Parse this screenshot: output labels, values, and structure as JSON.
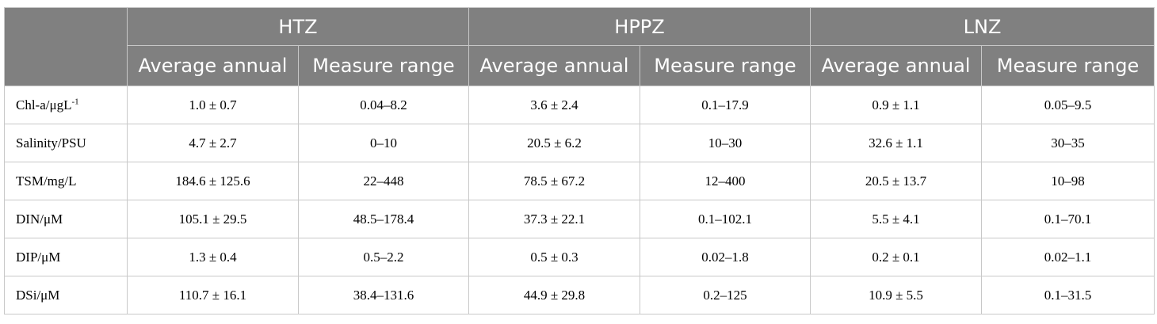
{
  "table": {
    "groups": [
      "HTZ",
      "HPPZ",
      "LNZ"
    ],
    "subheaders": [
      "Average annual",
      "Measure range",
      "Average annual",
      "Measure range",
      "Average annual",
      "Measure range"
    ],
    "rows": [
      {
        "label": "Chl-a/μgL",
        "label_sup": "-1",
        "cells": [
          "1.0 ± 0.7",
          "0.04–8.2",
          "3.6 ± 2.4",
          "0.1–17.9",
          "0.9 ± 1.1",
          "0.05–9.5"
        ]
      },
      {
        "label": "Salinity/PSU",
        "label_sup": "",
        "cells": [
          "4.7 ± 2.7",
          "0–10",
          "20.5 ± 6.2",
          "10–30",
          "32.6 ± 1.1",
          "30–35"
        ]
      },
      {
        "label": "TSM/mg/L",
        "label_sup": "",
        "cells": [
          "184.6 ± 125.6",
          "22–448",
          "78.5 ± 67.2",
          "12–400",
          "20.5 ± 13.7",
          "10–98"
        ]
      },
      {
        "label": "DIN/μM",
        "label_sup": "",
        "cells": [
          "105.1 ± 29.5",
          "48.5–178.4",
          "37.3 ± 22.1",
          "0.1–102.1",
          "5.5 ± 4.1",
          "0.1–70.1"
        ]
      },
      {
        "label": "DIP/μM",
        "label_sup": "",
        "cells": [
          "1.3 ± 0.4",
          "0.5–2.2",
          "0.5 ± 0.3",
          "0.02–1.8",
          "0.2 ± 0.1",
          "0.02–1.1"
        ]
      },
      {
        "label": "DSi/μM",
        "label_sup": "",
        "cells": [
          "110.7 ± 16.1",
          "38.4–131.6",
          "44.9 ± 29.8",
          "0.2–125",
          "10.9 ± 5.5",
          "0.1–31.5"
        ]
      }
    ]
  },
  "colors": {
    "header_bg": "#808080",
    "header_text": "#ffffff",
    "border": "#c8c8c8",
    "body_text": "#000000"
  }
}
